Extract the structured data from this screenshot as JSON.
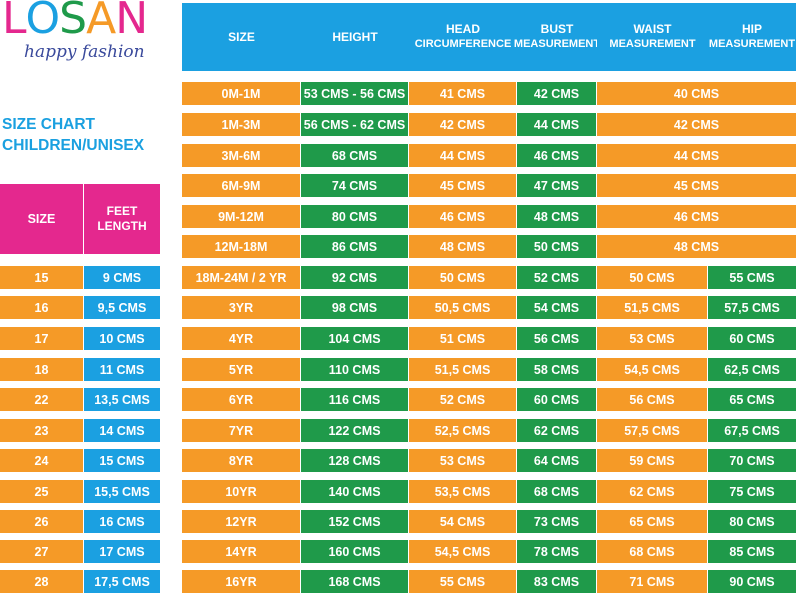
{
  "brand": {
    "letters": [
      {
        "ch": "L",
        "color": "#e4288e"
      },
      {
        "ch": "O",
        "color": "#1ba0e1"
      },
      {
        "ch": "S",
        "color": "#1f9a4a"
      },
      {
        "ch": "A",
        "color": "#f59a27"
      },
      {
        "ch": "N",
        "color": "#e4288e"
      }
    ],
    "tagline": "happy fashion"
  },
  "title": {
    "line1": "SIZE CHART",
    "line2": "CHILDREN/UNISEX"
  },
  "colors": {
    "orange": "#f59a27",
    "green": "#1f9a4a",
    "blue": "#1ba0e1",
    "pink": "#e4288e"
  },
  "feet_table": {
    "headers": [
      "SIZE",
      "FEET LENGTH"
    ],
    "rows": [
      [
        "15",
        "9 CMS"
      ],
      [
        "16",
        "9,5 CMS"
      ],
      [
        "17",
        "10 CMS"
      ],
      [
        "18",
        "11 CMS"
      ],
      [
        "22",
        "13,5 CMS"
      ],
      [
        "23",
        "14 CMS"
      ],
      [
        "24",
        "15 CMS"
      ],
      [
        "25",
        "15,5 CMS"
      ],
      [
        "26",
        "16 CMS"
      ],
      [
        "27",
        "17 CMS"
      ],
      [
        "28",
        "17,5 CMS"
      ]
    ]
  },
  "main_table": {
    "headers": [
      "SIZE",
      "HEIGHT",
      "HEAD CIRCUMFERENCE",
      "BUST MEASUREMENT",
      "WAIST MEASUREMENT",
      "HIP MEASUREMENT"
    ],
    "rows": [
      [
        "0M-1M",
        "53 CMS - 56 CMS",
        "41 CMS",
        "42 CMS",
        "40 CMS",
        ""
      ],
      [
        "1M-3M",
        "56 CMS - 62 CMS",
        "42 CMS",
        "44 CMS",
        "42 CMS",
        ""
      ],
      [
        "3M-6M",
        "68 CMS",
        "44 CMS",
        "46 CMS",
        "44 CMS",
        ""
      ],
      [
        "6M-9M",
        "74 CMS",
        "45 CMS",
        "47 CMS",
        "45 CMS",
        ""
      ],
      [
        "9M-12M",
        "80 CMS",
        "46 CMS",
        "48 CMS",
        "46 CMS",
        ""
      ],
      [
        "12M-18M",
        "86 CMS",
        "48 CMS",
        "50 CMS",
        "48 CMS",
        ""
      ],
      [
        "18M-24M / 2 YR",
        "92 CMS",
        "50 CMS",
        "52 CMS",
        "50 CMS",
        "55 CMS"
      ],
      [
        "3YR",
        "98 CMS",
        "50,5 CMS",
        "54 CMS",
        "51,5 CMS",
        "57,5 CMS"
      ],
      [
        "4YR",
        "104 CMS",
        "51 CMS",
        "56 CMS",
        "53 CMS",
        "60 CMS"
      ],
      [
        "5YR",
        "110 CMS",
        "51,5 CMS",
        "58 CMS",
        "54,5 CMS",
        "62,5 CMS"
      ],
      [
        "6YR",
        "116 CMS",
        "52 CMS",
        "60 CMS",
        "56 CMS",
        "65 CMS"
      ],
      [
        "7YR",
        "122 CMS",
        "52,5 CMS",
        "62 CMS",
        "57,5 CMS",
        "67,5 CMS"
      ],
      [
        "8YR",
        "128 CMS",
        "53 CMS",
        "64 CMS",
        "59 CMS",
        "70 CMS"
      ],
      [
        "10YR",
        "140 CMS",
        "53,5 CMS",
        "68 CMS",
        "62 CMS",
        "75 CMS"
      ],
      [
        "12YR",
        "152 CMS",
        "54 CMS",
        "73 CMS",
        "65 CMS",
        "80 CMS"
      ],
      [
        "14YR",
        "160 CMS",
        "54,5 CMS",
        "78 CMS",
        "68 CMS",
        "85 CMS"
      ],
      [
        "16YR",
        "168 CMS",
        "55 CMS",
        "83 CMS",
        "71 CMS",
        "90 CMS"
      ]
    ]
  }
}
